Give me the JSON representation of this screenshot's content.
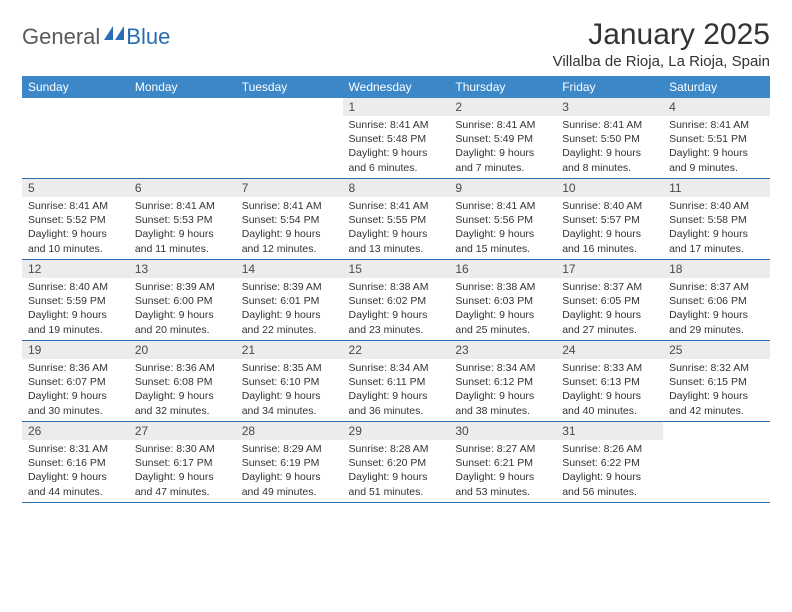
{
  "brand": {
    "part1": "General",
    "part2": "Blue"
  },
  "title": "January 2025",
  "location": "Villalba de Rioja, La Rioja, Spain",
  "colors": {
    "header_bg": "#3b87c8",
    "header_text": "#ffffff",
    "row_divider": "#2a6db5",
    "daynum_bg": "#ececec",
    "body_text": "#333333",
    "logo_gray": "#5a5a5a",
    "logo_blue": "#2a6db5"
  },
  "weekdays": [
    "Sunday",
    "Monday",
    "Tuesday",
    "Wednesday",
    "Thursday",
    "Friday",
    "Saturday"
  ],
  "weeks": [
    [
      null,
      null,
      null,
      {
        "n": "1",
        "sunrise": "8:41 AM",
        "sunset": "5:48 PM",
        "daylight": "9 hours and 6 minutes."
      },
      {
        "n": "2",
        "sunrise": "8:41 AM",
        "sunset": "5:49 PM",
        "daylight": "9 hours and 7 minutes."
      },
      {
        "n": "3",
        "sunrise": "8:41 AM",
        "sunset": "5:50 PM",
        "daylight": "9 hours and 8 minutes."
      },
      {
        "n": "4",
        "sunrise": "8:41 AM",
        "sunset": "5:51 PM",
        "daylight": "9 hours and 9 minutes."
      }
    ],
    [
      {
        "n": "5",
        "sunrise": "8:41 AM",
        "sunset": "5:52 PM",
        "daylight": "9 hours and 10 minutes."
      },
      {
        "n": "6",
        "sunrise": "8:41 AM",
        "sunset": "5:53 PM",
        "daylight": "9 hours and 11 minutes."
      },
      {
        "n": "7",
        "sunrise": "8:41 AM",
        "sunset": "5:54 PM",
        "daylight": "9 hours and 12 minutes."
      },
      {
        "n": "8",
        "sunrise": "8:41 AM",
        "sunset": "5:55 PM",
        "daylight": "9 hours and 13 minutes."
      },
      {
        "n": "9",
        "sunrise": "8:41 AM",
        "sunset": "5:56 PM",
        "daylight": "9 hours and 15 minutes."
      },
      {
        "n": "10",
        "sunrise": "8:40 AM",
        "sunset": "5:57 PM",
        "daylight": "9 hours and 16 minutes."
      },
      {
        "n": "11",
        "sunrise": "8:40 AM",
        "sunset": "5:58 PM",
        "daylight": "9 hours and 17 minutes."
      }
    ],
    [
      {
        "n": "12",
        "sunrise": "8:40 AM",
        "sunset": "5:59 PM",
        "daylight": "9 hours and 19 minutes."
      },
      {
        "n": "13",
        "sunrise": "8:39 AM",
        "sunset": "6:00 PM",
        "daylight": "9 hours and 20 minutes."
      },
      {
        "n": "14",
        "sunrise": "8:39 AM",
        "sunset": "6:01 PM",
        "daylight": "9 hours and 22 minutes."
      },
      {
        "n": "15",
        "sunrise": "8:38 AM",
        "sunset": "6:02 PM",
        "daylight": "9 hours and 23 minutes."
      },
      {
        "n": "16",
        "sunrise": "8:38 AM",
        "sunset": "6:03 PM",
        "daylight": "9 hours and 25 minutes."
      },
      {
        "n": "17",
        "sunrise": "8:37 AM",
        "sunset": "6:05 PM",
        "daylight": "9 hours and 27 minutes."
      },
      {
        "n": "18",
        "sunrise": "8:37 AM",
        "sunset": "6:06 PM",
        "daylight": "9 hours and 29 minutes."
      }
    ],
    [
      {
        "n": "19",
        "sunrise": "8:36 AM",
        "sunset": "6:07 PM",
        "daylight": "9 hours and 30 minutes."
      },
      {
        "n": "20",
        "sunrise": "8:36 AM",
        "sunset": "6:08 PM",
        "daylight": "9 hours and 32 minutes."
      },
      {
        "n": "21",
        "sunrise": "8:35 AM",
        "sunset": "6:10 PM",
        "daylight": "9 hours and 34 minutes."
      },
      {
        "n": "22",
        "sunrise": "8:34 AM",
        "sunset": "6:11 PM",
        "daylight": "9 hours and 36 minutes."
      },
      {
        "n": "23",
        "sunrise": "8:34 AM",
        "sunset": "6:12 PM",
        "daylight": "9 hours and 38 minutes."
      },
      {
        "n": "24",
        "sunrise": "8:33 AM",
        "sunset": "6:13 PM",
        "daylight": "9 hours and 40 minutes."
      },
      {
        "n": "25",
        "sunrise": "8:32 AM",
        "sunset": "6:15 PM",
        "daylight": "9 hours and 42 minutes."
      }
    ],
    [
      {
        "n": "26",
        "sunrise": "8:31 AM",
        "sunset": "6:16 PM",
        "daylight": "9 hours and 44 minutes."
      },
      {
        "n": "27",
        "sunrise": "8:30 AM",
        "sunset": "6:17 PM",
        "daylight": "9 hours and 47 minutes."
      },
      {
        "n": "28",
        "sunrise": "8:29 AM",
        "sunset": "6:19 PM",
        "daylight": "9 hours and 49 minutes."
      },
      {
        "n": "29",
        "sunrise": "8:28 AM",
        "sunset": "6:20 PM",
        "daylight": "9 hours and 51 minutes."
      },
      {
        "n": "30",
        "sunrise": "8:27 AM",
        "sunset": "6:21 PM",
        "daylight": "9 hours and 53 minutes."
      },
      {
        "n": "31",
        "sunrise": "8:26 AM",
        "sunset": "6:22 PM",
        "daylight": "9 hours and 56 minutes."
      },
      null
    ]
  ],
  "labels": {
    "sunrise": "Sunrise: ",
    "sunset": "Sunset: ",
    "daylight": "Daylight: "
  }
}
